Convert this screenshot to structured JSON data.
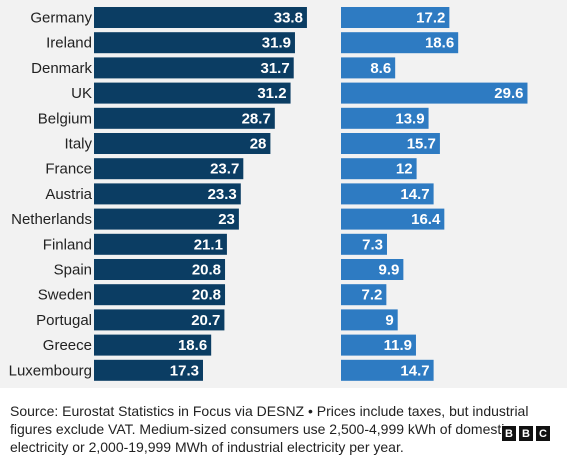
{
  "chart_data": {
    "type": "bar",
    "orientation": "horizontal",
    "categories": [
      "Germany",
      "Ireland",
      "Denmark",
      "UK",
      "Belgium",
      "Italy",
      "France",
      "Austria",
      "Netherlands",
      "Finland",
      "Spain",
      "Sweden",
      "Portugal",
      "Greece",
      "Luxembourg"
    ],
    "series": [
      {
        "color": "#0b3d63",
        "values": [
          33.8,
          31.9,
          31.7,
          31.2,
          28.7,
          28,
          23.7,
          23.3,
          23,
          21.1,
          20.8,
          20.8,
          20.7,
          18.6,
          17.3
        ],
        "labels": [
          "33.8",
          "31.9",
          "31.7",
          "31.2",
          "28.7",
          "28",
          "23.7",
          "23.3",
          "23",
          "21.1",
          "20.8",
          "20.8",
          "20.7",
          "18.6",
          "17.3"
        ]
      },
      {
        "color": "#2e7bc2",
        "values": [
          17.2,
          18.6,
          8.6,
          29.6,
          13.9,
          15.7,
          12,
          14.7,
          16.4,
          7.3,
          9.9,
          7.2,
          9,
          11.9,
          14.7
        ],
        "labels": [
          "17.2",
          "18.6",
          "8.6",
          "29.6",
          "13.9",
          "15.7",
          "12",
          "14.7",
          "16.4",
          "7.3",
          "9.9",
          "7.2",
          "9",
          "11.9",
          "14.7"
        ]
      }
    ],
    "grid": false,
    "legend": "none",
    "background": "#f2f2f2"
  },
  "footer": {
    "text": "Source: Eurostat Statistics in Focus via DESNZ • Prices include taxes, but industrial figures exclude VAT. Medium-sized consumers use 2,500-4,999 kWh of domestic electricity or 2,000-19,999 MWh of industrial electricity per year."
  },
  "logo": {
    "letters": [
      "B",
      "B",
      "C"
    ]
  }
}
